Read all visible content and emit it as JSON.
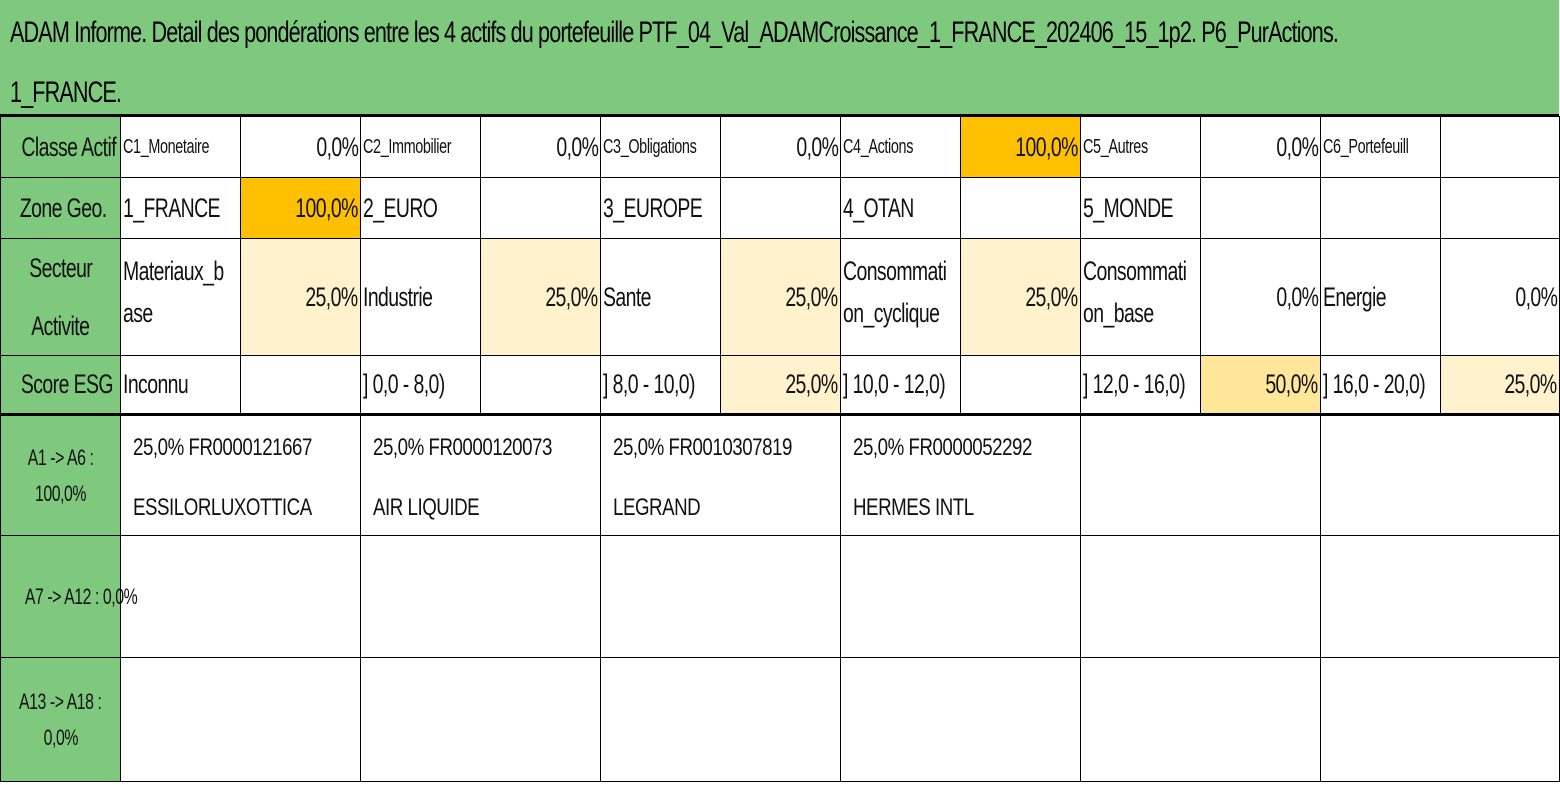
{
  "title": {
    "line1": "ADAM Informe. Detail des pondérations entre les 4 actifs du portefeuille PTF_04_Val_ADAMCroissance_1_FRANCE_202406_15_1p2. P6_PurActions.",
    "line2": "1_FRANCE."
  },
  "colors": {
    "green_header": "#7fc97f",
    "orange": "#ffc000",
    "cream": "#fff2cc",
    "yellow": "#ffe699"
  },
  "classe_actif": {
    "label": "Classe Actif",
    "items": [
      {
        "name": "C1_Monetaire",
        "value": "0,0%"
      },
      {
        "name": "C2_Immobilier",
        "value": "0,0%"
      },
      {
        "name": "C3_Obligations",
        "value": "0,0%"
      },
      {
        "name": "C4_Actions",
        "value": "100,0%"
      },
      {
        "name": "C5_Autres",
        "value": "0,0%"
      },
      {
        "name": "C6_Portefeuill",
        "value": ""
      }
    ]
  },
  "zone_geo": {
    "label": "Zone Geo.",
    "items": [
      {
        "name": "1_FRANCE",
        "value": "100,0%"
      },
      {
        "name": "2_EURO",
        "value": ""
      },
      {
        "name": "3_EUROPE",
        "value": ""
      },
      {
        "name": "4_OTAN",
        "value": ""
      },
      {
        "name": "5_MONDE",
        "value": ""
      },
      {
        "name": "",
        "value": ""
      }
    ]
  },
  "secteur": {
    "label_line1": "Secteur",
    "label_line2": "Activite",
    "items": [
      {
        "name_line1": "Materiaux_b",
        "name_line2": "ase",
        "value": "25,0%"
      },
      {
        "name_line1": "Industrie",
        "name_line2": "",
        "value": "25,0%"
      },
      {
        "name_line1": "Sante",
        "name_line2": "",
        "value": "25,0%"
      },
      {
        "name_line1": "Consommati",
        "name_line2": "on_cyclique",
        "value": "25,0%"
      },
      {
        "name_line1": "Consommati",
        "name_line2": "on_base",
        "value": "0,0%"
      },
      {
        "name_line1": "Energie",
        "name_line2": "",
        "value": "0,0%"
      }
    ]
  },
  "score_esg": {
    "label": "Score ESG",
    "items": [
      {
        "name": "Inconnu",
        "value": ""
      },
      {
        "name": "] 0,0 - 8,0)",
        "value": ""
      },
      {
        "name": "] 8,0 - 10,0)",
        "value": "25,0%"
      },
      {
        "name": "] 10,0 - 12,0)",
        "value": ""
      },
      {
        "name": "] 12,0 - 16,0)",
        "value": "50,0%"
      },
      {
        "name": "] 16,0 - 20,0)",
        "value": "25,0%"
      }
    ]
  },
  "assets": {
    "group1_label_line1": "A1 -> A6 :",
    "group1_label_line2": "100,0%",
    "group2_label": "A7 -> A12 : 0,0%",
    "group3_label_line1": "A13 -> A18 :",
    "group3_label_line2": "0,0%",
    "items": [
      {
        "line1": "25,0% FR0000121667",
        "line2": "ESSILORLUXOTTICA"
      },
      {
        "line1": "25,0% FR0000120073",
        "line2": "AIR LIQUIDE"
      },
      {
        "line1": "25,0% FR0010307819",
        "line2": "LEGRAND"
      },
      {
        "line1": "25,0% FR0000052292",
        "line2": "HERMES INTL"
      }
    ]
  }
}
